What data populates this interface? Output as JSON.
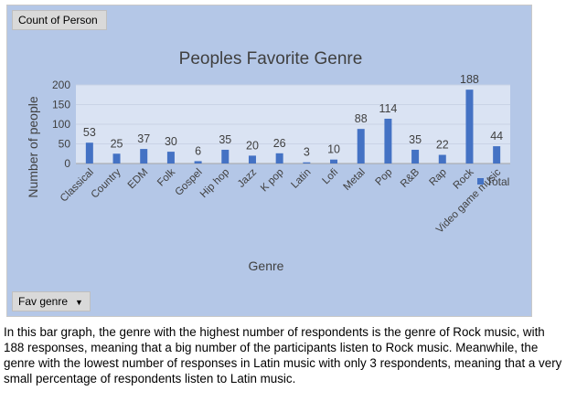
{
  "pivot": {
    "value_field": "Count of Person",
    "filter_field": "Fav genre"
  },
  "chart_data": {
    "type": "bar",
    "title": "Peoples Favorite Genre",
    "xlabel": "Genre",
    "ylabel": "Number of people",
    "categories": [
      "Classical",
      "Country",
      "EDM",
      "Folk",
      "Gospel",
      "Hip hop",
      "Jazz",
      "K pop",
      "Latin",
      "Lofi",
      "Metal",
      "Pop",
      "R&B",
      "Rap",
      "Rock",
      "Video game music"
    ],
    "series": [
      {
        "name": "Total",
        "values": [
          53,
          25,
          37,
          30,
          6,
          35,
          20,
          26,
          3,
          10,
          88,
          114,
          35,
          22,
          188,
          44
        ]
      }
    ],
    "ylim": [
      0,
      200
    ],
    "yticks": [
      0,
      50,
      100,
      150,
      200
    ],
    "grid": true,
    "legend": "right",
    "colors": {
      "bar": "#4472c4",
      "plot_bg": "#dae3f3",
      "chart_bg": "#b4c7e7",
      "grid": "#c9d3e6"
    }
  },
  "description": "In this bar graph, the genre with the highest number of respondents is the genre of Rock music, with 188 responses, meaning that a big number of the participants listen to Rock music. Meanwhile, the genre with the lowest number of responses in Latin music with only 3 respondents, meaning that a very small percentage of respondents listen to Latin music."
}
